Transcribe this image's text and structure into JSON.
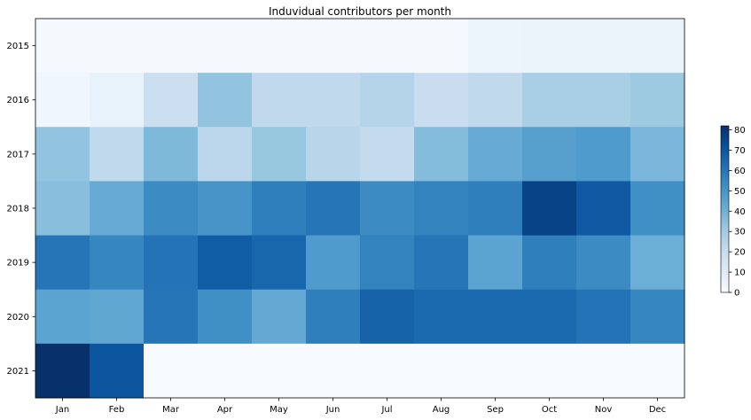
{
  "chart_data": {
    "type": "heatmap",
    "title": "Induvidual contributors per month",
    "xlabel": "",
    "ylabel": "",
    "x": [
      "Jan",
      "Feb",
      "Mar",
      "Apr",
      "May",
      "Jun",
      "Jul",
      "Aug",
      "Sep",
      "Oct",
      "Nov",
      "Dec"
    ],
    "y": [
      "2015",
      "2016",
      "2017",
      "2018",
      "2019",
      "2020",
      "2021"
    ],
    "values": [
      [
        1,
        1,
        1,
        1,
        1,
        1,
        1,
        1,
        4,
        5,
        5,
        5
      ],
      [
        3,
        6,
        18,
        33,
        22,
        22,
        25,
        19,
        22,
        28,
        28,
        31
      ],
      [
        33,
        22,
        37,
        23,
        32,
        24,
        21,
        36,
        42,
        46,
        48,
        38
      ],
      [
        35,
        42,
        53,
        50,
        57,
        60,
        53,
        56,
        57,
        76,
        69,
        52
      ],
      [
        60,
        55,
        61,
        68,
        65,
        48,
        56,
        60,
        45,
        57,
        53,
        41
      ],
      [
        45,
        44,
        60,
        52,
        43,
        57,
        66,
        64,
        64,
        64,
        61,
        55
      ],
      [
        82,
        70,
        0,
        0,
        0,
        0,
        0,
        0,
        0,
        0,
        0,
        0
      ]
    ],
    "colorbar": {
      "min": 0,
      "max": 82,
      "ticks": [
        "0",
        "10",
        "20",
        "30",
        "40",
        "50",
        "60",
        "70",
        "80"
      ],
      "colormap": "Blues"
    }
  }
}
